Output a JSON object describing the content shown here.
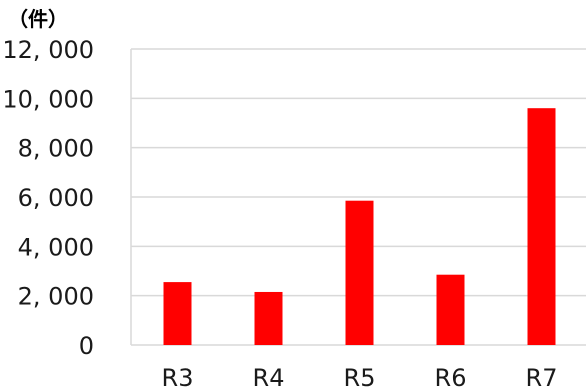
{
  "chart_data": {
    "type": "bar",
    "unit_label": "（件）",
    "categories": [
      "R3",
      "R4",
      "R5",
      "R6",
      "R7"
    ],
    "values": [
      2550,
      2150,
      5850,
      2850,
      9600
    ],
    "ylim": [
      0,
      12000
    ],
    "yticks": [
      0,
      2000,
      4000,
      6000,
      8000,
      10000,
      12000
    ],
    "ytick_labels": [
      "0",
      "2, 000",
      "4, 000",
      "6, 000",
      "8, 000",
      "10, 000",
      "12, 000"
    ],
    "grid": true,
    "legend": "none",
    "bar_color": "#ff0000",
    "grid_color": "#d9d9d9"
  }
}
